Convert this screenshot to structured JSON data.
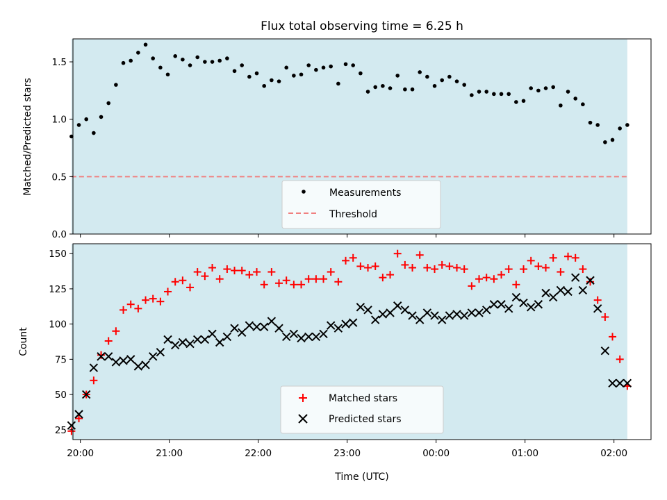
{
  "chart_data": [
    {
      "type": "scatter",
      "title": "Flux total observing time = 6.25 h",
      "xlabel": "",
      "ylabel": "Matched/Predicted stars",
      "xlim": [
        "19:55",
        "02:25"
      ],
      "ylim": [
        0,
        1.7
      ],
      "yticks": [
        "0.0",
        "0.5",
        "1.0",
        "1.5"
      ],
      "shaded_span": [
        "19:54",
        "02:09"
      ],
      "shade_color": "#d3eaf0",
      "legend_position": "lower center",
      "series": [
        {
          "name": "Measurements",
          "color": "#000000",
          "marker": "dot",
          "x": [
            "19:54",
            "19:59",
            "20:04",
            "20:09",
            "20:14",
            "20:19",
            "20:24",
            "20:29",
            "20:34",
            "20:39",
            "20:44",
            "20:49",
            "20:54",
            "20:59",
            "21:04",
            "21:09",
            "21:14",
            "21:19",
            "21:24",
            "21:29",
            "21:34",
            "21:39",
            "21:44",
            "21:49",
            "21:54",
            "21:59",
            "22:04",
            "22:09",
            "22:14",
            "22:19",
            "22:24",
            "22:29",
            "22:34",
            "22:39",
            "22:44",
            "22:49",
            "22:54",
            "22:59",
            "23:04",
            "23:09",
            "23:14",
            "23:19",
            "23:24",
            "23:29",
            "23:34",
            "23:39",
            "23:44",
            "23:49",
            "23:54",
            "23:59",
            "00:04",
            "00:09",
            "00:14",
            "00:19",
            "00:24",
            "00:29",
            "00:34",
            "00:39",
            "00:44",
            "00:49",
            "00:54",
            "00:59",
            "01:04",
            "01:09",
            "01:14",
            "01:19",
            "01:24",
            "01:29",
            "01:34",
            "01:39",
            "01:44",
            "01:49",
            "01:54",
            "01:59",
            "02:04",
            "02:09"
          ],
          "y": [
            0.85,
            0.95,
            1.0,
            0.88,
            1.02,
            1.14,
            1.3,
            1.49,
            1.51,
            1.58,
            1.65,
            1.53,
            1.45,
            1.39,
            1.55,
            1.52,
            1.47,
            1.54,
            1.5,
            1.5,
            1.51,
            1.53,
            1.42,
            1.47,
            1.37,
            1.4,
            1.29,
            1.34,
            1.33,
            1.45,
            1.38,
            1.39,
            1.47,
            1.43,
            1.45,
            1.46,
            1.31,
            1.48,
            1.47,
            1.4,
            1.24,
            1.28,
            1.29,
            1.27,
            1.38,
            1.26,
            1.26,
            1.41,
            1.37,
            1.29,
            1.34,
            1.37,
            1.33,
            1.3,
            1.21,
            1.24,
            1.24,
            1.22,
            1.22,
            1.22,
            1.15,
            1.16,
            1.27,
            1.25,
            1.27,
            1.28,
            1.12,
            1.24,
            1.18,
            1.13,
            0.97,
            0.95,
            0.8,
            0.82,
            0.92,
            0.95
          ]
        },
        {
          "name": "Threshold",
          "color": "#f08080",
          "style": "dashed",
          "x": [
            "19:54",
            "02:09"
          ],
          "y": [
            0.5,
            0.5
          ]
        }
      ]
    },
    {
      "type": "scatter",
      "title": "",
      "xlabel": "Time (UTC)",
      "ylabel": "Count",
      "xlim": [
        "19:55",
        "02:25"
      ],
      "ylim": [
        18,
        157
      ],
      "xticks": [
        "20:00",
        "21:00",
        "22:00",
        "23:00",
        "00:00",
        "01:00",
        "02:00"
      ],
      "yticks": [
        "25",
        "50",
        "75",
        "100",
        "125",
        "150"
      ],
      "shaded_span": [
        "19:54",
        "02:09"
      ],
      "shade_color": "#d3eaf0",
      "legend_position": "lower center",
      "series": [
        {
          "name": "Matched stars",
          "color": "#ff0000",
          "marker": "plus",
          "x": [
            "19:54",
            "19:59",
            "20:04",
            "20:09",
            "20:14",
            "20:19",
            "20:24",
            "20:29",
            "20:34",
            "20:39",
            "20:44",
            "20:49",
            "20:54",
            "20:59",
            "21:04",
            "21:09",
            "21:14",
            "21:19",
            "21:24",
            "21:29",
            "21:34",
            "21:39",
            "21:44",
            "21:49",
            "21:54",
            "21:59",
            "22:04",
            "22:09",
            "22:14",
            "22:19",
            "22:24",
            "22:29",
            "22:34",
            "22:39",
            "22:44",
            "22:49",
            "22:54",
            "22:59",
            "23:04",
            "23:09",
            "23:14",
            "23:19",
            "23:24",
            "23:29",
            "23:34",
            "23:39",
            "23:44",
            "23:49",
            "23:54",
            "23:59",
            "00:04",
            "00:09",
            "00:14",
            "00:19",
            "00:24",
            "00:29",
            "00:34",
            "00:39",
            "00:44",
            "00:49",
            "00:54",
            "00:59",
            "01:04",
            "01:09",
            "01:14",
            "01:19",
            "01:24",
            "01:29",
            "01:34",
            "01:39",
            "01:44",
            "01:49",
            "01:54",
            "01:59",
            "02:04",
            "02:09"
          ],
          "y": [
            24,
            33,
            50,
            60,
            78,
            88,
            95,
            110,
            114,
            111,
            117,
            118,
            116,
            123,
            130,
            131,
            126,
            137,
            134,
            140,
            132,
            139,
            138,
            138,
            135,
            137,
            128,
            137,
            129,
            131,
            128,
            128,
            132,
            132,
            132,
            137,
            130,
            145,
            147,
            141,
            140,
            141,
            133,
            135,
            150,
            142,
            140,
            149,
            140,
            139,
            142,
            141,
            140,
            139,
            127,
            132,
            133,
            132,
            135,
            139,
            128,
            139,
            145,
            141,
            140,
            147,
            137,
            148,
            147,
            139,
            130,
            117,
            105,
            91,
            75,
            56
          ]
        },
        {
          "name": "Predicted stars",
          "color": "#000000",
          "marker": "x",
          "x": [
            "19:54",
            "19:59",
            "20:04",
            "20:09",
            "20:14",
            "20:19",
            "20:24",
            "20:29",
            "20:34",
            "20:39",
            "20:44",
            "20:49",
            "20:54",
            "20:59",
            "21:04",
            "21:09",
            "21:14",
            "21:19",
            "21:24",
            "21:29",
            "21:34",
            "21:39",
            "21:44",
            "21:49",
            "21:54",
            "21:59",
            "22:04",
            "22:09",
            "22:14",
            "22:19",
            "22:24",
            "22:29",
            "22:34",
            "22:39",
            "22:44",
            "22:49",
            "22:54",
            "22:59",
            "23:04",
            "23:09",
            "23:14",
            "23:19",
            "23:24",
            "23:29",
            "23:34",
            "23:39",
            "23:44",
            "23:49",
            "23:54",
            "23:59",
            "00:04",
            "00:09",
            "00:14",
            "00:19",
            "00:24",
            "00:29",
            "00:34",
            "00:39",
            "00:44",
            "00:49",
            "00:54",
            "00:59",
            "01:04",
            "01:09",
            "01:14",
            "01:19",
            "01:24",
            "01:29",
            "01:34",
            "01:39",
            "01:44",
            "01:49",
            "01:54",
            "01:59",
            "02:04",
            "02:09"
          ],
          "y": [
            28,
            36,
            50,
            69,
            77,
            77,
            73,
            74,
            75,
            70,
            71,
            77,
            80,
            89,
            85,
            87,
            86,
            89,
            89,
            93,
            87,
            91,
            97,
            94,
            99,
            98,
            98,
            102,
            97,
            91,
            93,
            90,
            91,
            91,
            93,
            99,
            97,
            100,
            101,
            112,
            110,
            103,
            107,
            108,
            113,
            110,
            106,
            103,
            108,
            106,
            103,
            106,
            107,
            106,
            108,
            108,
            110,
            114,
            114,
            111,
            119,
            115,
            112,
            114,
            122,
            119,
            124,
            123,
            133,
            124,
            131,
            111,
            81,
            58,
            58,
            58
          ]
        }
      ]
    }
  ]
}
